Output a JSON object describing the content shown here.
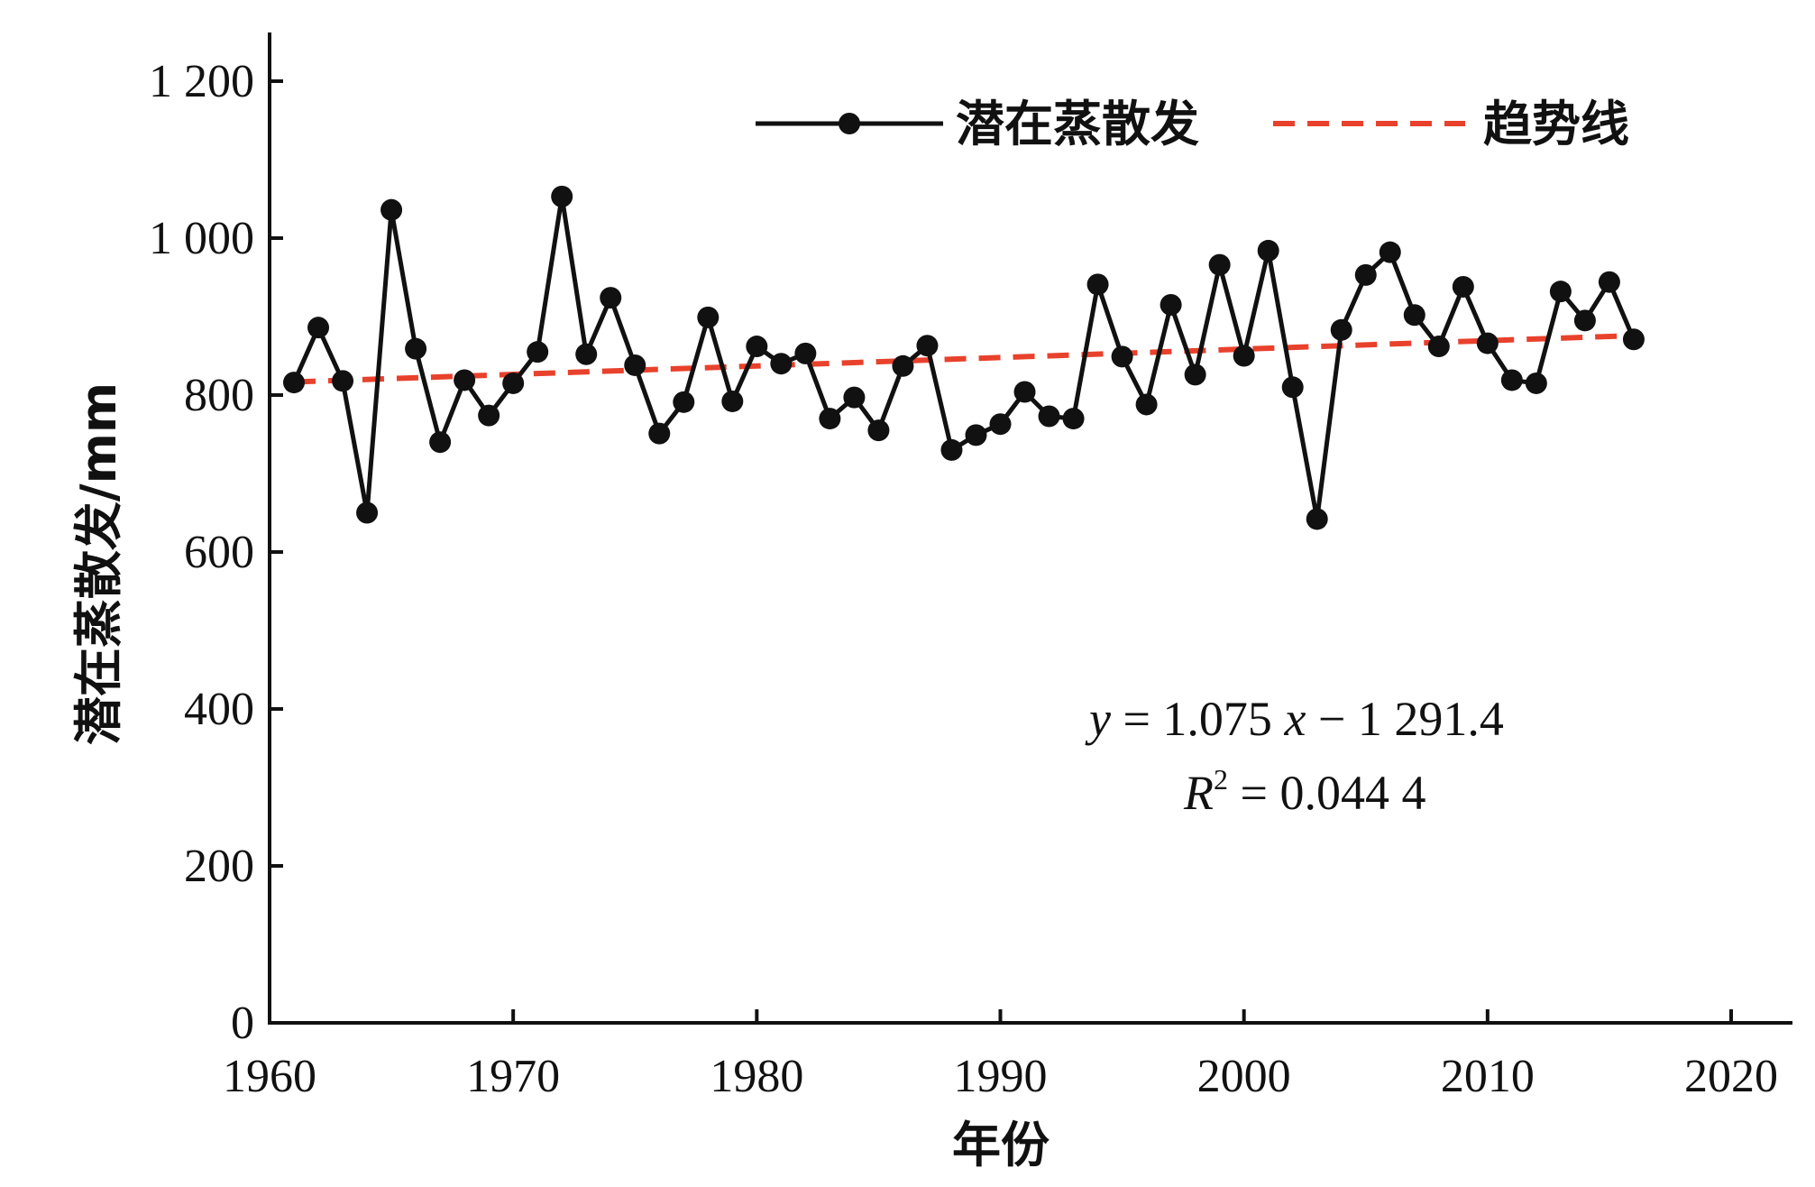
{
  "chart_data": {
    "type": "line",
    "title": "",
    "xlabel": "年份",
    "ylabel": "潜在蒸散发/mm",
    "xlim": [
      1960,
      2020
    ],
    "ylim": [
      0,
      1200
    ],
    "x_ticks": [
      "1960",
      "1970",
      "1980",
      "1990",
      "2000",
      "2010",
      "2020"
    ],
    "y_ticks": [
      "0",
      "200",
      "400",
      "600",
      "800",
      "1 000",
      "1 200"
    ],
    "x_tick_values": [
      1960,
      1970,
      1980,
      1990,
      2000,
      2010,
      2020
    ],
    "y_tick_values": [
      0,
      200,
      400,
      600,
      800,
      1000,
      1200
    ],
    "grid": false,
    "legend_position": "top-right",
    "legend": [
      "潜在蒸散发",
      "趋势线"
    ],
    "x": [
      1961,
      1962,
      1963,
      1964,
      1965,
      1966,
      1967,
      1968,
      1969,
      1970,
      1971,
      1972,
      1973,
      1974,
      1975,
      1976,
      1977,
      1978,
      1979,
      1980,
      1981,
      1982,
      1983,
      1984,
      1985,
      1986,
      1987,
      1988,
      1989,
      1990,
      1991,
      1992,
      1993,
      1994,
      1995,
      1996,
      1997,
      1998,
      1999,
      2000,
      2001,
      2002,
      2003,
      2004,
      2005,
      2006,
      2007,
      2008,
      2009,
      2010,
      2011,
      2012,
      2013,
      2014,
      2015,
      2016
    ],
    "series": [
      {
        "name": "潜在蒸散发",
        "color": "#111111",
        "values": [
          816,
          886,
          818,
          650,
          1036,
          859,
          740,
          819,
          774,
          815,
          855,
          1053,
          852,
          924,
          838,
          751,
          791,
          899,
          792,
          862,
          840,
          853,
          770,
          797,
          755,
          837,
          863,
          730,
          749,
          763,
          804,
          773,
          770,
          941,
          849,
          788,
          915,
          826,
          966,
          850,
          984,
          810,
          642,
          883,
          953,
          982,
          902,
          862,
          938,
          866,
          819,
          815,
          932,
          895,
          944,
          871
        ]
      },
      {
        "name": "趋势线",
        "color": "#e8412c",
        "slope": 1.075,
        "intercept": -1291.4
      }
    ],
    "annotations": {
      "equation": [
        "y",
        " = 1.075 ",
        "x",
        " − 1 291.4"
      ],
      "r2_label": "R",
      "r2_sup": "2",
      "r2_value": " = 0.044 4"
    }
  }
}
